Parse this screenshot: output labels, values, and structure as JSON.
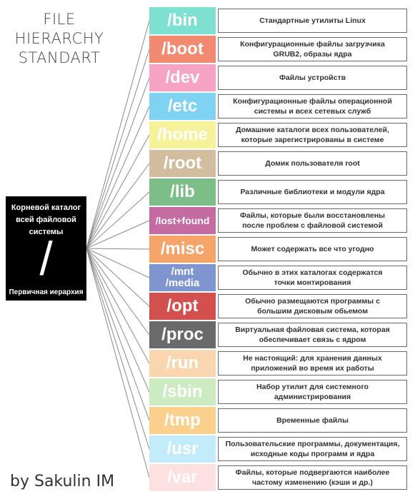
{
  "title": [
    "FILE",
    "HIERARCHY",
    "STANDART"
  ],
  "author": "by Sakulin IM",
  "root": {
    "label": [
      "Корневой каталог",
      "всей файловой",
      "системы"
    ],
    "slash": "/",
    "sublabel": "Первичная иерархия"
  },
  "directories": [
    {
      "name": "/bin",
      "color": "#7ee0d0",
      "description": [
        "Стандартные утилиты Linux"
      ]
    },
    {
      "name": "/boot",
      "color": "#f28a72",
      "description": [
        "Конфигурационные файлы загрузчика",
        "GRUB2, образы ядра"
      ]
    },
    {
      "name": "/dev",
      "color": "#f7a3c3",
      "description": [
        "Файлы устройств"
      ]
    },
    {
      "name": "/etc",
      "color": "#80d2f2",
      "description": [
        "Конфигурационные файлы операционной",
        "системы и всех сетевых служб"
      ]
    },
    {
      "name": "/home",
      "color": "#f6f29a",
      "description": [
        "Домашние каталоги всех пользователей,",
        "которые зарегистрированы в системе"
      ]
    },
    {
      "name": "/root",
      "color": "#d3bd9f",
      "description": [
        "Домик пользователя root"
      ]
    },
    {
      "name": "/lib",
      "color": "#7dbe88",
      "description": [
        "Различные библиотеки и модули ядра"
      ]
    },
    {
      "name": "/lost+found",
      "color": "#c46ba1",
      "description": [
        "Файлы, которые были восстановлены",
        "после проблем с файловой системой"
      ]
    },
    {
      "name": "/misc",
      "color": "#f6a56a",
      "description": [
        "Может содержать все что угодно"
      ]
    },
    {
      "name": "/mnt\n/media",
      "color": "#7f95cf",
      "description": [
        "Обычно в этих каталогах содержатся",
        "точки монтирования"
      ]
    },
    {
      "name": "/opt",
      "color": "#d2514f",
      "description": [
        "Обычно размещаются программы с",
        "большим дисковым обьемом"
      ]
    },
    {
      "name": "/proc",
      "color": "#6a6a6a",
      "description": [
        "Виртуальная файловая система, которая",
        "обеспечивает связь с ядром"
      ]
    },
    {
      "name": "/run",
      "color": "#fad6b0",
      "description": [
        "Не настоящий: для хранения данных",
        "приложений во время их работы"
      ]
    },
    {
      "name": "/sbin",
      "color": "#cdebc1",
      "description": [
        "Набор утилит для системного",
        "администрирования"
      ]
    },
    {
      "name": "/tmp",
      "color": "#fbd08c",
      "description": [
        "Временные файлы"
      ]
    },
    {
      "name": "/usr",
      "color": "#c3ecfa",
      "description": [
        "Пользовательские программы, документация,",
        "исходные коды программ и ядра"
      ]
    },
    {
      "name": "/var",
      "color": "#fde0e0",
      "description": [
        "Файлы, которые подвергаются наиболее",
        "частому изменению (кэши и др.)"
      ]
    }
  ]
}
